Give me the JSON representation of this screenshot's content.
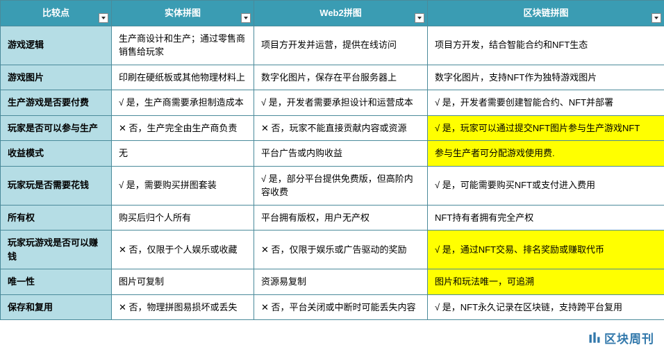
{
  "table": {
    "headers": [
      "比较点",
      "实体拼图",
      "Web2拼图",
      "区块链拼图"
    ],
    "rows": [
      {
        "label": "游戏逻辑",
        "cells": [
          {
            "text": "生产商设计和生产；通过零售商销售给玩家",
            "hl": false
          },
          {
            "text": "项目方开发并运营，提供在线访问",
            "hl": false
          },
          {
            "text": "项目方开发，结合智能合约和NFT生态",
            "hl": false
          }
        ]
      },
      {
        "label": "游戏图片",
        "cells": [
          {
            "text": "印刷在硬纸板或其他物理材料上",
            "hl": false
          },
          {
            "text": "数字化图片，保存在平台服务器上",
            "hl": false
          },
          {
            "text": "数字化图片，支持NFT作为独特游戏图片",
            "hl": false
          }
        ]
      },
      {
        "label": "生产游戏是否要付费",
        "cells": [
          {
            "text": "√ 是，生产商需要承担制造成本",
            "hl": false
          },
          {
            "text": "√ 是，开发者需要承担设计和运营成本",
            "hl": false
          },
          {
            "text": "√ 是，开发者需要创建智能合约、NFT并部署",
            "hl": false
          }
        ]
      },
      {
        "label": "玩家是否可以参与生产",
        "cells": [
          {
            "text": "✕ 否，生产完全由生产商负责",
            "hl": false
          },
          {
            "text": "✕ 否，玩家不能直接贡献内容或资源",
            "hl": false
          },
          {
            "text": "√ 是，玩家可以通过提交NFT图片参与生产游戏NFT",
            "hl": true
          }
        ]
      },
      {
        "label": "收益模式",
        "cells": [
          {
            "text": "无",
            "hl": false
          },
          {
            "text": "平台广告或内购收益",
            "hl": false
          },
          {
            "text": "参与生产者可分配游戏使用费.",
            "hl": true
          }
        ]
      },
      {
        "label": "玩家玩是否需要花钱",
        "cells": [
          {
            "text": "√ 是，需要购买拼图套装",
            "hl": false
          },
          {
            "text": "√ 是，部分平台提供免费版，但高阶内容收费",
            "hl": false
          },
          {
            "text": "√ 是，可能需要购买NFT或支付进入费用",
            "hl": false
          }
        ]
      },
      {
        "label": "所有权",
        "cells": [
          {
            "text": "购买后归个人所有",
            "hl": false
          },
          {
            "text": "平台拥有版权，用户无产权",
            "hl": false
          },
          {
            "text": "NFT持有者拥有完全产权",
            "hl": false
          }
        ]
      },
      {
        "label": "玩家玩游戏是否可以赚钱",
        "cells": [
          {
            "text": "✕ 否，仅限于个人娱乐或收藏",
            "hl": false
          },
          {
            "text": "✕ 否，仅限于娱乐或广告驱动的奖励",
            "hl": false
          },
          {
            "text": "√ 是，通过NFT交易、排名奖励或赚取代币",
            "hl": true
          }
        ]
      },
      {
        "label": "唯一性",
        "cells": [
          {
            "text": "图片可复制",
            "hl": false
          },
          {
            "text": "资源易复制",
            "hl": false
          },
          {
            "text": "图片和玩法唯一，可追溯",
            "hl": true
          }
        ]
      },
      {
        "label": "保存和复用",
        "cells": [
          {
            "text": "✕ 否，物理拼图易损坏或丢失",
            "hl": false
          },
          {
            "text": "✕ 否，平台关闭或中断时可能丢失内容",
            "hl": false
          },
          {
            "text": "√ 是，NFT永久记录在区块链，支持跨平台复用",
            "hl": false
          }
        ]
      }
    ]
  },
  "watermark": "区块周刊",
  "colors": {
    "header_bg": "#3a9cb3",
    "header_text": "#ffffff",
    "label_bg": "#b5dde5",
    "highlight_bg": "#ffff00",
    "border": "#4a8a9a"
  }
}
